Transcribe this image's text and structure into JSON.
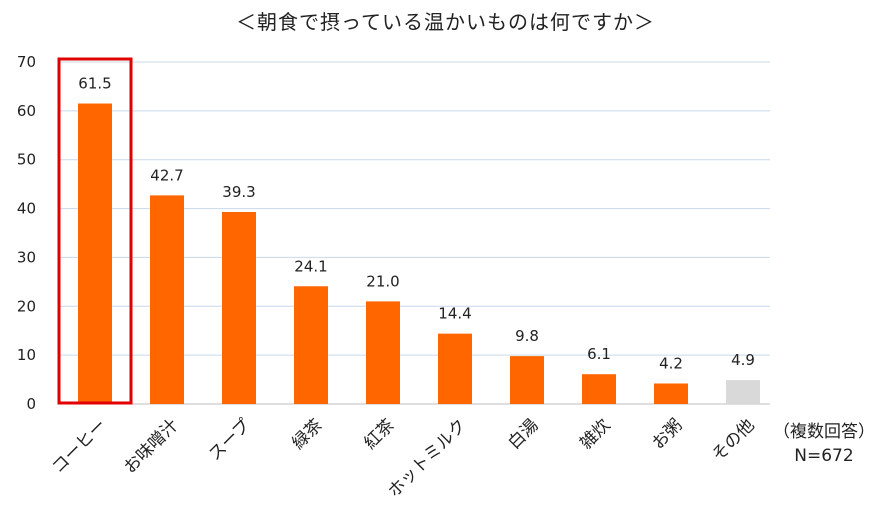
{
  "chart_data": {
    "type": "bar",
    "title": "＜朝食で摂っている温かいものは何ですか＞",
    "categories": [
      "コーヒー",
      "お味噌汁",
      "スープ",
      "緑茶",
      "紅茶",
      "ホットミルク",
      "白湯",
      "雑炊",
      "お粥",
      "その他"
    ],
    "values": [
      61.5,
      42.7,
      39.3,
      24.1,
      21.0,
      14.4,
      9.8,
      6.1,
      4.2,
      4.9
    ],
    "value_labels": [
      "61.5",
      "42.7",
      "39.3",
      "24.1",
      "21.0",
      "14.4",
      "9.8",
      "6.1",
      "4.2",
      "4.9"
    ],
    "ylim": [
      0,
      70
    ],
    "yticks": [
      0,
      10,
      20,
      30,
      40,
      50,
      60,
      70
    ],
    "grid": true,
    "highlighted_index": 0,
    "bar_color": "#ff6600",
    "other_bar_color": "#d9d9d9",
    "highlight_box_color": "#e00000",
    "grid_color": "#c9d9ea",
    "note_line1": "（複数回答）",
    "note_line2": "N=672"
  }
}
